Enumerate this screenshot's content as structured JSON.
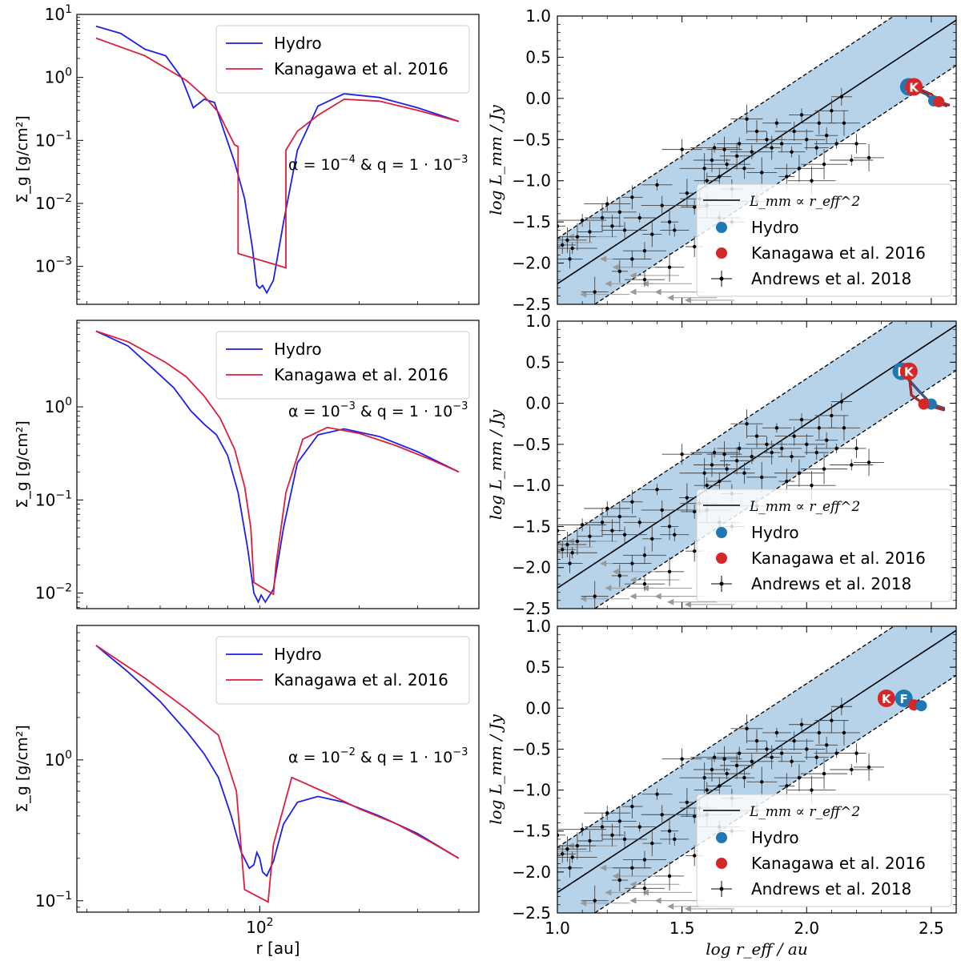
{
  "colors": {
    "hydro": "#1f1fe8",
    "kanagawa": "#dc1e3c",
    "hydro_marker": "#1f77b4",
    "kanagawa_marker": "#d62728",
    "band": "#a9cbe6",
    "data_point": "#000000",
    "upper_limit": "#999999"
  },
  "chart_data": [
    {
      "type": "line",
      "panel": "left-top",
      "title": "",
      "xlabel": "",
      "ylabel": "Σ_g [g/cm²]",
      "yscale": "log",
      "ylim": [
        0.00025,
        10
      ],
      "xscale": "log",
      "xlim": [
        28,
        460
      ],
      "yticks": [
        {
          "label": "10^1",
          "value": 10
        },
        {
          "label": "10^0",
          "value": 1
        },
        {
          "label": "10^-1",
          "value": 0.1
        },
        {
          "label": "10^-2",
          "value": 0.01
        },
        {
          "label": "10^-3",
          "value": 0.001
        }
      ],
      "xticks": [],
      "annotation": {
        "alpha": "α = 10^-4",
        "q": "q = 1 · 10^-3"
      },
      "legend": [
        "Hydro",
        "Kanagawa et al. 2016"
      ],
      "series": [
        {
          "name": "Hydro",
          "x": [
            32,
            38,
            45,
            52,
            58,
            63,
            68,
            73,
            78,
            84,
            90,
            95,
            98,
            100,
            102,
            105,
            110,
            118,
            130,
            150,
            180,
            230,
            300,
            400
          ],
          "y": [
            6.5,
            5,
            2.8,
            2.2,
            1.0,
            0.33,
            0.45,
            0.4,
            0.14,
            0.045,
            0.012,
            0.002,
            0.0005,
            0.00045,
            0.0005,
            0.00038,
            0.0006,
            0.005,
            0.07,
            0.35,
            0.55,
            0.48,
            0.33,
            0.2
          ]
        },
        {
          "name": "Kanagawa et al. 2016",
          "x": [
            32,
            45,
            60,
            68,
            75,
            80,
            84,
            86,
            86,
            120,
            120,
            130,
            150,
            180,
            230,
            300,
            400
          ],
          "y": [
            4.2,
            2.2,
            0.9,
            0.5,
            0.28,
            0.14,
            0.085,
            0.08,
            0.0016,
            0.00095,
            0.07,
            0.14,
            0.25,
            0.45,
            0.42,
            0.3,
            0.2
          ]
        }
      ]
    },
    {
      "type": "scatter",
      "panel": "right-top",
      "xlabel": "",
      "ylabel": "log L_mm / Jy",
      "xlim": [
        1.0,
        2.6
      ],
      "ylim": [
        -2.5,
        1.0
      ],
      "xticks": [],
      "yticks": [
        "1.0",
        "0.5",
        "0.0",
        "-0.5",
        "-1.0",
        "-1.5",
        "-2.0",
        "-2.5"
      ],
      "relation": {
        "label": "L_mm ∝ r_eff^2",
        "slope": 2,
        "intercept": -4.25,
        "band_halfwidth": 0.55
      },
      "legend": [
        "L_mm ∝ r_eff^2",
        "Hydro",
        "Kanagawa et al. 2016",
        "Andrews et al. 2018"
      ],
      "markers": [
        {
          "series": "Hydro",
          "letter": "F",
          "x": 2.41,
          "y": 0.14
        },
        {
          "series": "Kanagawa et al. 2016",
          "letter": "K",
          "x": 2.43,
          "y": 0.14
        },
        {
          "series": "Hydro",
          "letter": "",
          "x": 2.51,
          "y": -0.03
        },
        {
          "series": "Kanagawa et al. 2016",
          "letter": "",
          "x": 2.53,
          "y": -0.04
        }
      ],
      "tracks": [
        {
          "series": "Hydro",
          "x": [
            2.41,
            2.48,
            2.51,
            2.56
          ],
          "y": [
            0.14,
            0.05,
            -0.03,
            -0.09
          ]
        },
        {
          "series": "Kanagawa et al. 2016",
          "x": [
            2.43,
            2.5,
            2.53,
            2.57
          ],
          "y": [
            0.14,
            0.05,
            -0.04,
            -0.08
          ]
        }
      ]
    },
    {
      "type": "line",
      "panel": "left-middle",
      "xlabel": "",
      "ylabel": "Σ_g [g/cm²]",
      "yscale": "log",
      "ylim": [
        0.0068,
        8.5
      ],
      "xscale": "log",
      "xlim": [
        28,
        460
      ],
      "yticks": [
        {
          "label": "10^0",
          "value": 1
        },
        {
          "label": "10^-1",
          "value": 0.1
        },
        {
          "label": "10^-2",
          "value": 0.01
        }
      ],
      "xticks": [],
      "annotation": {
        "alpha": "α = 10^-3",
        "q": "q = 1 · 10^-3"
      },
      "legend": [
        "Hydro",
        "Kanagawa et al. 2016"
      ],
      "series": [
        {
          "name": "Hydro",
          "x": [
            32,
            40,
            48,
            55,
            62,
            68,
            74,
            80,
            86,
            92,
            96,
            99,
            101,
            104,
            110,
            118,
            130,
            150,
            180,
            230,
            300,
            400
          ],
          "y": [
            6.5,
            4.5,
            2.5,
            1.6,
            0.9,
            0.65,
            0.5,
            0.3,
            0.12,
            0.03,
            0.01,
            0.008,
            0.0095,
            0.008,
            0.011,
            0.05,
            0.25,
            0.5,
            0.58,
            0.48,
            0.33,
            0.2
          ]
        },
        {
          "name": "Kanagawa et al. 2016",
          "x": [
            32,
            40,
            52,
            60,
            68,
            76,
            84,
            90,
            94,
            96,
            110,
            112,
            120,
            135,
            160,
            200,
            260,
            330,
            400
          ],
          "y": [
            6.5,
            5.0,
            3.0,
            2.1,
            1.3,
            0.75,
            0.35,
            0.14,
            0.05,
            0.013,
            0.0097,
            0.02,
            0.12,
            0.45,
            0.6,
            0.52,
            0.38,
            0.27,
            0.2
          ]
        }
      ]
    },
    {
      "type": "scatter",
      "panel": "right-middle",
      "xlabel": "",
      "ylabel": "log L_mm / Jy",
      "xlim": [
        1.0,
        2.6
      ],
      "ylim": [
        -2.5,
        1.0
      ],
      "xticks": [],
      "yticks": [
        "1.0",
        "0.5",
        "0.0",
        "-0.5",
        "-1.0",
        "-1.5",
        "-2.0",
        "-2.5"
      ],
      "relation": {
        "label": "L_mm ∝ r_eff^2",
        "slope": 2,
        "intercept": -4.25,
        "band_halfwidth": 0.55
      },
      "legend": [
        "L_mm ∝ r_eff^2",
        "Hydro",
        "Kanagawa et al. 2016",
        "Andrews et al. 2018"
      ],
      "markers": [
        {
          "series": "Hydro",
          "letter": "F",
          "x": 2.38,
          "y": 0.39
        },
        {
          "series": "Kanagawa et al. 2016",
          "letter": "K",
          "x": 2.41,
          "y": 0.39
        },
        {
          "series": "Hydro",
          "letter": "",
          "x": 2.5,
          "y": -0.01
        },
        {
          "series": "Kanagawa et al. 2016",
          "letter": "",
          "x": 2.47,
          "y": -0.01
        }
      ],
      "tracks": [
        {
          "series": "Hydro",
          "x": [
            2.38,
            2.45,
            2.5,
            2.55
          ],
          "y": [
            0.39,
            0.15,
            -0.01,
            -0.06
          ]
        },
        {
          "series": "Kanagawa et al. 2016",
          "x": [
            2.41,
            2.42,
            2.47,
            2.55
          ],
          "y": [
            0.39,
            0.1,
            -0.01,
            -0.08
          ]
        }
      ]
    },
    {
      "type": "line",
      "panel": "left-bottom",
      "xlabel": "r [au]",
      "ylabel": "Σ_g [g/cm²]",
      "yscale": "log",
      "ylim": [
        0.083,
        9
      ],
      "xscale": "log",
      "xlim": [
        28,
        460
      ],
      "yticks": [
        {
          "label": "10^0",
          "value": 1
        },
        {
          "label": "10^-1",
          "value": 0.1
        }
      ],
      "xticks": [
        {
          "label": "10^2",
          "value": 100
        }
      ],
      "annotation": {
        "alpha": "α = 10^-2",
        "q": "q = 1 · 10^-3"
      },
      "legend": [
        "Hydro",
        "Kanagawa et al. 2016"
      ],
      "series": [
        {
          "name": "Hydro",
          "x": [
            32,
            40,
            50,
            60,
            68,
            75,
            82,
            88,
            93,
            96,
            98,
            100,
            102,
            105,
            110,
            118,
            130,
            150,
            180,
            230,
            300,
            400
          ],
          "y": [
            6.5,
            4.2,
            2.6,
            1.6,
            1.1,
            0.75,
            0.4,
            0.22,
            0.17,
            0.18,
            0.22,
            0.2,
            0.16,
            0.15,
            0.19,
            0.35,
            0.5,
            0.55,
            0.5,
            0.4,
            0.3,
            0.2
          ]
        },
        {
          "name": "Kanagawa et al. 2016",
          "x": [
            32,
            45,
            60,
            75,
            85,
            90,
            106,
            110,
            125,
            160,
            200,
            260,
            330,
            400
          ],
          "y": [
            6.5,
            3.8,
            2.3,
            1.5,
            0.6,
            0.12,
            0.098,
            0.25,
            0.75,
            0.58,
            0.45,
            0.35,
            0.26,
            0.2
          ]
        }
      ]
    },
    {
      "type": "scatter",
      "panel": "right-bottom",
      "xlabel": "log r_eff / au",
      "ylabel": "log L_mm / Jy",
      "xlim": [
        1.0,
        2.6
      ],
      "ylim": [
        -2.5,
        1.0
      ],
      "xticks": [
        "1.0",
        "1.5",
        "2.0",
        "2.5"
      ],
      "yticks": [
        "1.0",
        "0.5",
        "0.0",
        "-0.5",
        "-1.0",
        "-1.5",
        "-2.0",
        "-2.5"
      ],
      "relation": {
        "label": "L_mm ∝ r_eff^2",
        "slope": 2,
        "intercept": -4.25,
        "band_halfwidth": 0.55
      },
      "legend": [
        "L_mm ∝ r_eff^2",
        "Hydro",
        "Kanagawa et al. 2016",
        "Andrews et al. 2018"
      ],
      "markers": [
        {
          "series": "Kanagawa et al. 2016",
          "letter": "K",
          "x": 2.32,
          "y": 0.12
        },
        {
          "series": "Hydro",
          "letter": "F",
          "x": 2.39,
          "y": 0.12
        },
        {
          "series": "Kanagawa et al. 2016",
          "letter": "",
          "x": 2.43,
          "y": 0.04
        },
        {
          "series": "Hydro",
          "letter": "",
          "x": 2.46,
          "y": 0.03
        }
      ],
      "tracks": [
        {
          "series": "Kanagawa et al. 2016",
          "x": [
            2.32,
            2.39
          ],
          "y": [
            0.12,
            0.12
          ]
        }
      ]
    }
  ],
  "andrews_2018": {
    "detections": [
      [
        1.0,
        -1.55
      ],
      [
        1.02,
        -1.78
      ],
      [
        1.04,
        -1.72
      ],
      [
        1.06,
        -1.82
      ],
      [
        1.05,
        -1.95
      ],
      [
        1.08,
        -1.68
      ],
      [
        1.1,
        -1.48
      ],
      [
        1.13,
        -1.62
      ],
      [
        1.18,
        -1.45
      ],
      [
        1.2,
        -1.28
      ],
      [
        1.22,
        -1.55
      ],
      [
        1.25,
        -1.38
      ],
      [
        1.27,
        -1.6
      ],
      [
        1.3,
        -1.2
      ],
      [
        1.33,
        -1.45
      ],
      [
        1.35,
        -1.85
      ],
      [
        1.38,
        -1.65
      ],
      [
        1.4,
        -1.05
      ],
      [
        1.42,
        -1.3
      ],
      [
        1.45,
        -1.5
      ],
      [
        1.47,
        -1.6
      ],
      [
        1.5,
        -0.62
      ],
      [
        1.52,
        -1.15
      ],
      [
        1.55,
        -1.32
      ],
      [
        1.57,
        -1.22
      ],
      [
        1.59,
        -0.85
      ],
      [
        1.6,
        -1.0
      ],
      [
        1.62,
        -0.75
      ],
      [
        1.63,
        -0.6
      ],
      [
        1.65,
        -0.95
      ],
      [
        1.67,
        -0.62
      ],
      [
        1.68,
        -0.8
      ],
      [
        1.7,
        -1.1
      ],
      [
        1.72,
        -0.7
      ],
      [
        1.73,
        -0.55
      ],
      [
        1.75,
        -0.85
      ],
      [
        1.76,
        -0.25
      ],
      [
        1.78,
        -0.65
      ],
      [
        1.8,
        -0.4
      ],
      [
        1.82,
        -0.9
      ],
      [
        1.84,
        -0.5
      ],
      [
        1.86,
        -0.6
      ],
      [
        1.88,
        -0.3
      ],
      [
        1.9,
        -0.55
      ],
      [
        1.92,
        -0.95
      ],
      [
        1.94,
        -0.65
      ],
      [
        1.95,
        -0.4
      ],
      [
        1.97,
        -0.85
      ],
      [
        1.98,
        -0.2
      ],
      [
        2.0,
        -0.5
      ],
      [
        2.02,
        -1.0
      ],
      [
        2.04,
        -0.6
      ],
      [
        2.05,
        -0.3
      ],
      [
        2.07,
        -0.8
      ],
      [
        2.08,
        -0.45
      ],
      [
        2.1,
        -0.15
      ],
      [
        2.12,
        -0.55
      ],
      [
        2.14,
        0.02
      ],
      [
        2.15,
        -0.3
      ],
      [
        2.18,
        -0.75
      ],
      [
        2.2,
        -0.55
      ],
      [
        2.25,
        -0.72
      ],
      [
        1.65,
        -1.45
      ],
      [
        1.55,
        -1.8
      ],
      [
        1.45,
        -2.05
      ],
      [
        1.35,
        -2.2
      ],
      [
        1.25,
        -2.1
      ],
      [
        1.15,
        -2.35
      ],
      [
        1.3,
        -1.95
      ],
      [
        1.6,
        -1.3
      ],
      [
        1.7,
        -1.5
      ],
      [
        1.8,
        -1.25
      ]
    ],
    "upper_limits": [
      [
        1.05,
        -1.75
      ],
      [
        1.15,
        -1.68
      ],
      [
        1.28,
        -1.95
      ],
      [
        1.33,
        -2.05
      ],
      [
        1.4,
        -2.15
      ],
      [
        1.45,
        -2.25
      ],
      [
        1.5,
        -2.35
      ],
      [
        1.4,
        -2.35
      ],
      [
        1.55,
        -2.42
      ],
      [
        1.62,
        -2.45
      ],
      [
        1.3,
        -2.25
      ],
      [
        1.2,
        -2.38
      ]
    ]
  },
  "labels": {
    "legend_hydro": "Hydro",
    "legend_kanagawa": "Kanagawa et al. 2016",
    "legend_andrews": "Andrews et al. 2018"
  }
}
